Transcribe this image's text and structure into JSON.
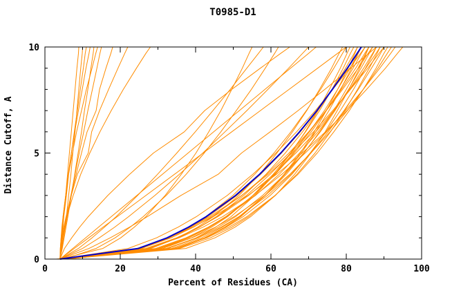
{
  "title": "T0985-D1",
  "colors": {
    "model_line": "#FF8C00",
    "highlight_line": "#0000CD",
    "axis": "#000000",
    "background": "#FFFFFF"
  },
  "chart_data": {
    "type": "line",
    "title": "T0985-D1",
    "xlabel": "Percent of Residues (CA)",
    "ylabel": "Distance Cutoff, A",
    "xlim": [
      0,
      100
    ],
    "ylim": [
      0,
      10
    ],
    "x_major_ticks": [
      0,
      20,
      40,
      60,
      80,
      100
    ],
    "x_minor_step": 10,
    "y_major_ticks": [
      0,
      5,
      10
    ],
    "y_minor_step": 1,
    "grid": false,
    "legend": "none",
    "y_grid": [
      0,
      0.5,
      1,
      1.5,
      2,
      3,
      4,
      5,
      6,
      7,
      8,
      9,
      9.7,
      10
    ],
    "series": [
      {
        "color": "#FF8C00",
        "x": [
          4,
          34.7,
          42.3,
          47.7,
          51.8,
          58.5,
          63.7,
          68.1,
          71.9,
          75.4,
          78.5,
          81.4,
          83.2,
          84
        ]
      },
      {
        "color": "#FF8C00",
        "x": [
          5,
          37.4,
          45.1,
          50.4,
          54.6,
          61.2,
          66.3,
          70.6,
          74.4,
          77.6,
          80.7,
          83.5,
          85.3,
          86
        ]
      },
      {
        "color": "#FF8C00",
        "x": [
          4,
          34.3,
          42.5,
          48.1,
          52.6,
          59.8,
          65.6,
          70.4,
          74.6,
          78.4,
          81.9,
          85.1,
          87.2,
          88
        ]
      },
      {
        "color": "#FF8C00",
        "x": [
          6,
          30.0,
          37.8,
          43.4,
          48.0,
          55.3,
          61.2,
          66.2,
          70.7,
          74.7,
          78.4,
          81.8,
          84.0,
          85
        ]
      },
      {
        "color": "#FF8C00",
        "x": [
          4,
          32.2,
          40.3,
          46.0,
          50.6,
          57.8,
          63.7,
          68.7,
          73.1,
          77.0,
          80.6,
          83.9,
          86.1,
          87
        ]
      },
      {
        "color": "#FF8C00",
        "x": [
          5,
          27.9,
          35.4,
          41.0,
          45.5,
          52.8,
          58.7,
          63.8,
          68.4,
          72.5,
          76.3,
          79.8,
          82.1,
          83
        ]
      },
      {
        "color": "#FF8C00",
        "x": [
          4,
          35.7,
          43.9,
          49.6,
          54.1,
          61.1,
          66.9,
          71.7,
          75.8,
          79.6,
          83.0,
          86.1,
          88.2,
          89
        ]
      },
      {
        "color": "#FF8C00",
        "x": [
          3,
          32.5,
          40.7,
          46.7,
          51.5,
          59.1,
          65.3,
          70.6,
          75.2,
          79.4,
          83.2,
          86.7,
          89.1,
          90
        ]
      },
      {
        "color": "#FF8C00",
        "x": [
          5,
          27.4,
          35.2,
          41.0,
          45.7,
          53.5,
          59.8,
          65.3,
          70.2,
          74.6,
          78.7,
          82.5,
          84.9,
          86
        ]
      },
      {
        "color": "#FF8C00",
        "x": [
          5,
          25.5,
          33.0,
          38.6,
          43.3,
          51.0,
          57.3,
          62.8,
          67.8,
          72.3,
          76.4,
          80.4,
          82.9,
          84
        ]
      },
      {
        "color": "#FF8C00",
        "x": [
          4,
          29.4,
          37.4,
          43.3,
          48.1,
          55.9,
          62.2,
          67.6,
          72.5,
          76.8,
          80.9,
          84.6,
          87.0,
          88
        ]
      },
      {
        "color": "#FF8C00",
        "x": [
          4,
          34.5,
          42.9,
          48.8,
          53.6,
          61.1,
          67.2,
          72.3,
          76.7,
          80.8,
          84.5,
          87.9,
          90.0,
          91
        ]
      },
      {
        "color": "#FF8C00",
        "x": [
          6,
          31.3,
          38.9,
          44.2,
          48.5,
          55.2,
          60.6,
          65.2,
          69.2,
          72.9,
          76.2,
          79.2,
          81.1,
          82
        ]
      },
      {
        "color": "#FF8C00",
        "x": [
          4,
          22.1,
          29.6,
          35.3,
          40.2,
          48.4,
          55.2,
          61.3,
          66.8,
          71.8,
          76.4,
          80.9,
          83.8,
          85
        ]
      },
      {
        "color": "#FF8C00",
        "x": [
          5,
          25.6,
          33.5,
          39.4,
          44.3,
          52.3,
          58.9,
          64.8,
          70.0,
          74.7,
          79.0,
          83.2,
          85.8,
          87
        ]
      },
      {
        "color": "#FF8C00",
        "x": [
          4,
          25.7,
          32.9,
          38.3,
          42.7,
          49.9,
          55.7,
          60.8,
          65.3,
          69.4,
          73.2,
          76.7,
          79.0,
          80
        ]
      },
      {
        "color": "#FF8C00",
        "x": [
          4,
          30.6,
          39.0,
          45.2,
          50.2,
          58.4,
          65.0,
          70.6,
          75.7,
          80.3,
          84.5,
          88.4,
          90.9,
          92
        ]
      },
      {
        "color": "#FF8C00",
        "x": [
          5,
          33.6,
          41.6,
          47.1,
          51.5,
          58.4,
          64.1,
          68.8,
          72.9,
          76.7,
          80.0,
          83.1,
          85.2,
          86
        ]
      },
      {
        "color": "#FF8C00",
        "x": [
          4,
          30.5,
          38.2,
          43.7,
          48.2,
          55.3,
          61.0,
          65.9,
          70.2,
          74.2,
          77.7,
          81.0,
          83.1,
          84
        ]
      },
      {
        "color": "#FF8C00",
        "x": [
          4,
          26.8,
          34.9,
          40.9,
          45.9,
          54.1,
          60.8,
          66.6,
          71.9,
          76.7,
          81.0,
          85.2,
          87.9,
          89
        ]
      },
      {
        "color": "#FF8C00",
        "x": [
          5,
          27.1,
          35.6,
          41.9,
          47.2,
          55.8,
          62.9,
          69.1,
          74.8,
          79.8,
          84.5,
          88.9,
          91.8,
          93
        ]
      },
      {
        "color": "#FF8C00",
        "x": [
          4,
          24.4,
          32.8,
          39.2,
          44.7,
          53.9,
          61.5,
          68.3,
          74.5,
          80.2,
          85.4,
          90.4,
          93.6,
          95
        ]
      },
      {
        "color": "#FF8C00",
        "x": [
          6,
          32.7,
          40.1,
          45.3,
          49.4,
          55.7,
          61.0,
          65.3,
          69.1,
          72.5,
          75.5,
          78.4,
          80.2,
          81
        ]
      },
      {
        "color": "#FF8C00",
        "x": [
          5,
          28.1,
          35.3,
          40.5,
          44.7,
          51.5,
          57.0,
          61.6,
          65.7,
          69.5,
          72.9,
          76.1,
          78.1,
          79
        ]
      },
      {
        "color": "#FF8C00",
        "x": [
          4,
          24.5,
          32.5,
          38.7,
          43.8,
          52.2,
          59.3,
          65.6,
          71.3,
          76.4,
          81.1,
          85.7,
          88.7,
          90
        ]
      },
      {
        "color": "#FF8C00",
        "x": [
          5,
          35.3,
          42.7,
          47.9,
          52.0,
          58.4,
          63.5,
          67.8,
          71.5,
          74.7,
          77.7,
          80.5,
          82.3,
          83
        ]
      },
      {
        "color": "#FF8C00",
        "x": [
          4,
          11.7,
          17.3,
          22.4,
          27.2,
          36.1,
          46.0,
          52.2,
          59.8,
          67.2,
          74.3,
          81.2,
          86.0,
          88
        ]
      },
      {
        "color": "#FF8C00",
        "x": [
          4,
          7.8,
          11.6,
          15.4,
          19.2,
          26.8,
          34.4,
          42.0,
          49.6,
          57.2,
          64.8,
          72.4,
          77.7,
          80
        ]
      },
      {
        "color": "#FF8C00",
        "x": [
          4,
          10.0,
          14.4,
          18.5,
          22.2,
          29.2,
          35.7,
          41.9,
          47.8,
          53.6,
          59.2,
          64.7,
          68.4,
          70
        ]
      },
      {
        "color": "#FF8C00",
        "x": [
          5,
          13.6,
          18.6,
          22.6,
          26.1,
          32.2,
          37.5,
          42.3,
          46.7,
          50.8,
          54.8,
          58.5,
          61.0,
          62
        ]
      },
      {
        "color": "#FF8C00",
        "x": [
          4,
          15.4,
          20.1,
          23.7,
          26.8,
          31.9,
          36.2,
          40.1,
          43.5,
          46.7,
          49.6,
          52.4,
          54.2,
          55
        ]
      },
      {
        "color": "#FF8C00",
        "x": [
          4,
          7.4,
          10.8,
          14.2,
          17.6,
          24.4,
          31.2,
          38.0,
          44.8,
          51.6,
          58.4,
          65.2,
          70.0,
          72
        ]
      },
      {
        "color": "#FF8C00",
        "x": [
          4,
          5.2,
          7.1,
          9.2,
          11.5,
          16.7,
          22.5,
          28.8,
          37.0,
          42.4,
          49.6,
          57.2,
          62.6,
          65
        ]
      },
      {
        "color": "#FF8C00",
        "x": [
          4,
          8.9,
          12.5,
          15.8,
          18.9,
          24.6,
          29.9,
          35.0,
          39.9,
          44.6,
          49.2,
          53.6,
          56.7,
          58
        ]
      },
      {
        "color": "#FF8C00",
        "x": [
          4,
          4.3,
          4.5,
          4.8,
          5.0,
          5.5,
          6.0,
          6.5,
          7.0,
          7.5,
          8.0,
          8.5,
          8.9,
          9
        ]
      },
      {
        "color": "#FF8C00",
        "x": [
          4,
          4.2,
          4.4,
          4.7,
          5.0,
          5.7,
          6.3,
          7.0,
          7.8,
          8.6,
          9.4,
          10.2,
          10.7,
          11
        ]
      },
      {
        "color": "#FF8C00",
        "x": [
          4,
          4.6,
          5.1,
          5.6,
          6.1,
          7.0,
          7.9,
          8.8,
          9.7,
          10.5,
          11.4,
          12.2,
          12.8,
          13
        ]
      },
      {
        "color": "#FF8C00",
        "x": [
          4,
          4.4,
          4.9,
          5.4,
          5.9,
          6.9,
          8.0,
          9.1,
          10.3,
          11.4,
          12.6,
          13.8,
          14.6,
          15
        ]
      },
      {
        "color": "#FF8C00",
        "x": [
          4,
          4.1,
          4.3,
          4.6,
          4.8,
          5.5,
          6.2,
          7.0,
          7.9,
          8.9,
          9.9,
          10.9,
          11.7,
          12
        ]
      },
      {
        "color": "#FF8C00",
        "x": [
          4,
          4.3,
          4.7,
          5.2,
          5.7,
          6.9,
          8.3,
          9.7,
          11.2,
          13.6,
          14.5,
          16.2,
          17.5,
          18
        ]
      },
      {
        "color": "#FF8C00",
        "x": [
          4,
          4.2,
          4.6,
          5.0,
          5.6,
          7.0,
          8.6,
          11.5,
          12.4,
          14.5,
          16.9,
          19.4,
          21.2,
          22
        ]
      },
      {
        "color": "#FF8C00",
        "x": [
          4,
          4.2,
          4.6,
          5.2,
          5.8,
          7.5,
          9.5,
          11.9,
          14.6,
          17.6,
          20.8,
          24.3,
          26.8,
          28
        ]
      },
      {
        "color": "#FF8C00",
        "x": [
          4,
          4.5,
          4.9,
          5.3,
          5.7,
          6.3,
          6.9,
          7.4,
          8.0,
          8.5,
          9.0,
          9.5,
          9.9,
          10
        ]
      },
      {
        "color": "#FF8C00",
        "x": [
          4,
          4.1,
          4.3,
          4.5,
          4.8,
          5.5,
          6.3,
          7.3,
          8.4,
          9.7,
          11.0,
          12.5,
          13.5,
          14
        ]
      },
      {
        "color": "#0000CD",
        "width": 2,
        "x": [
          4,
          24.8,
          32.4,
          38.1,
          42.8,
          50.6,
          57.0,
          62.6,
          67.6,
          72.2,
          76.3,
          80.3,
          82.9,
          84
        ]
      }
    ]
  }
}
